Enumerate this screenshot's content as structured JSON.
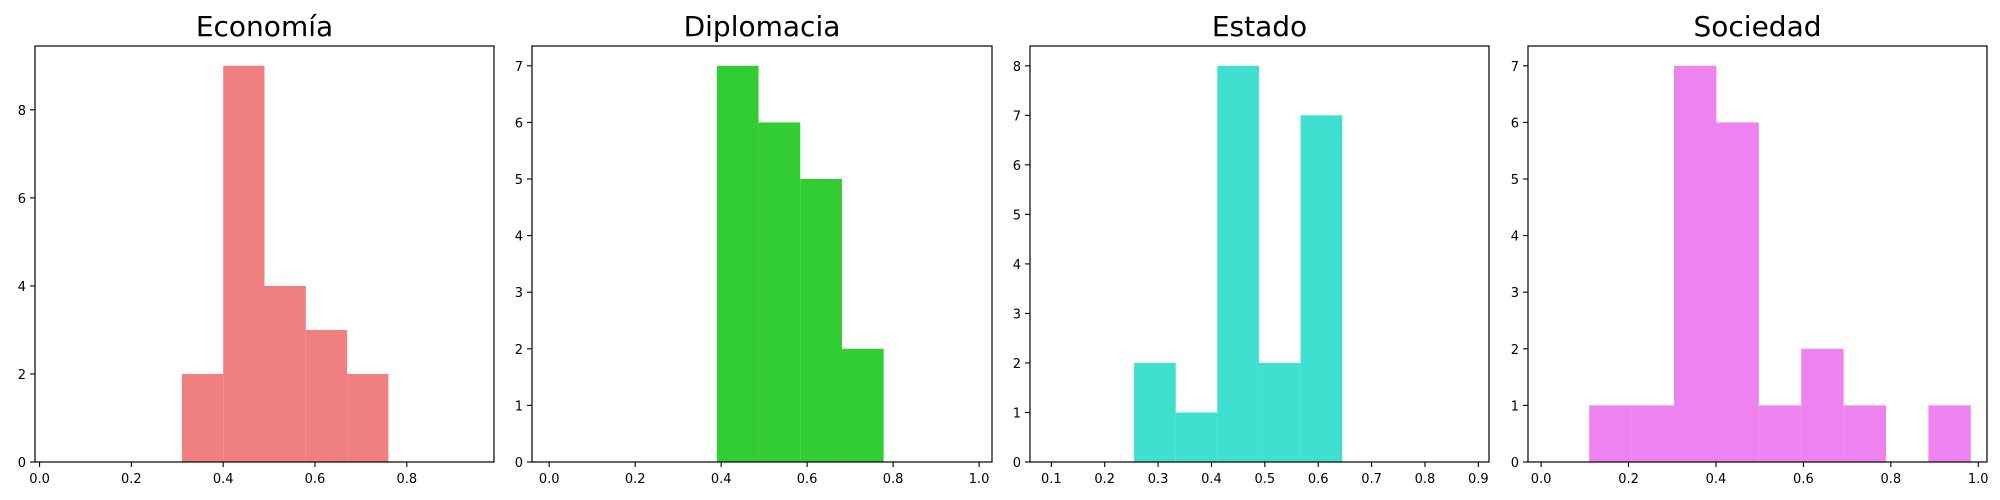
{
  "chart_data": [
    {
      "type": "bar",
      "title": "Economía",
      "color": "#f08080",
      "xlim": [
        -0.01,
        0.99
      ],
      "ylim": [
        0,
        9.45
      ],
      "xticks": [
        0.0,
        0.2,
        0.4,
        0.6,
        0.8
      ],
      "xtick_labels": [
        "0.0",
        "0.2",
        "0.4",
        "0.6",
        "0.8"
      ],
      "yticks": [
        0,
        2,
        4,
        6,
        8
      ],
      "ytick_labels": [
        "0",
        "2",
        "4",
        "6",
        "8"
      ],
      "bins": [
        {
          "x0": 0.31,
          "x1": 0.4,
          "value": 2
        },
        {
          "x0": 0.4,
          "x1": 0.49,
          "value": 9
        },
        {
          "x0": 0.49,
          "x1": 0.58,
          "value": 4
        },
        {
          "x0": 0.58,
          "x1": 0.67,
          "value": 3
        },
        {
          "x0": 0.67,
          "x1": 0.76,
          "value": 2
        }
      ]
    },
    {
      "type": "bar",
      "title": "Diplomacia",
      "color": "#32cd32",
      "xlim": [
        -0.04,
        1.03
      ],
      "ylim": [
        0,
        7.35
      ],
      "xticks": [
        0.0,
        0.2,
        0.4,
        0.6,
        0.8,
        1.0
      ],
      "xtick_labels": [
        "0.0",
        "0.2",
        "0.4",
        "0.6",
        "0.8",
        "1.0"
      ],
      "yticks": [
        0,
        1,
        2,
        3,
        4,
        5,
        6,
        7
      ],
      "ytick_labels": [
        "0",
        "1",
        "2",
        "3",
        "4",
        "5",
        "6",
        "7"
      ],
      "bins": [
        {
          "x0": 0.39,
          "x1": 0.487,
          "value": 7
        },
        {
          "x0": 0.487,
          "x1": 0.584,
          "value": 6
        },
        {
          "x0": 0.584,
          "x1": 0.681,
          "value": 5
        },
        {
          "x0": 0.681,
          "x1": 0.778,
          "value": 2
        }
      ]
    },
    {
      "type": "bar",
      "title": "Estado",
      "color": "#40e0d0",
      "xlim": [
        0.06,
        0.92
      ],
      "ylim": [
        0,
        8.4
      ],
      "xticks": [
        0.1,
        0.2,
        0.3,
        0.4,
        0.5,
        0.6,
        0.7,
        0.8,
        0.9
      ],
      "xtick_labels": [
        "0.1",
        "0.2",
        "0.3",
        "0.4",
        "0.5",
        "0.6",
        "0.7",
        "0.8",
        "0.9"
      ],
      "yticks": [
        0,
        1,
        2,
        3,
        4,
        5,
        6,
        7,
        8
      ],
      "ytick_labels": [
        "0",
        "1",
        "2",
        "3",
        "4",
        "5",
        "6",
        "7",
        "8"
      ],
      "bins": [
        {
          "x0": 0.255,
          "x1": 0.333,
          "value": 2
        },
        {
          "x0": 0.333,
          "x1": 0.411,
          "value": 1
        },
        {
          "x0": 0.411,
          "x1": 0.489,
          "value": 8
        },
        {
          "x0": 0.489,
          "x1": 0.567,
          "value": 2
        },
        {
          "x0": 0.567,
          "x1": 0.645,
          "value": 7
        }
      ]
    },
    {
      "type": "bar",
      "title": "Sociedad",
      "color": "#ee82ee",
      "xlim": [
        -0.03,
        1.02
      ],
      "ylim": [
        0,
        7.35
      ],
      "xticks": [
        0.0,
        0.2,
        0.4,
        0.6,
        0.8,
        1.0
      ],
      "xtick_labels": [
        "0.0",
        "0.2",
        "0.4",
        "0.6",
        "0.8",
        "1.0"
      ],
      "yticks": [
        0,
        1,
        2,
        3,
        4,
        5,
        6,
        7
      ],
      "ytick_labels": [
        "0",
        "1",
        "2",
        "3",
        "4",
        "5",
        "6",
        "7"
      ],
      "bins": [
        {
          "x0": 0.11,
          "x1": 0.207,
          "value": 1
        },
        {
          "x0": 0.207,
          "x1": 0.304,
          "value": 1
        },
        {
          "x0": 0.304,
          "x1": 0.401,
          "value": 7
        },
        {
          "x0": 0.401,
          "x1": 0.498,
          "value": 6
        },
        {
          "x0": 0.498,
          "x1": 0.595,
          "value": 1
        },
        {
          "x0": 0.595,
          "x1": 0.692,
          "value": 2
        },
        {
          "x0": 0.692,
          "x1": 0.789,
          "value": 1
        },
        {
          "x0": 0.789,
          "x1": 0.886,
          "value": 0
        },
        {
          "x0": 0.886,
          "x1": 0.983,
          "value": 1
        }
      ]
    }
  ]
}
